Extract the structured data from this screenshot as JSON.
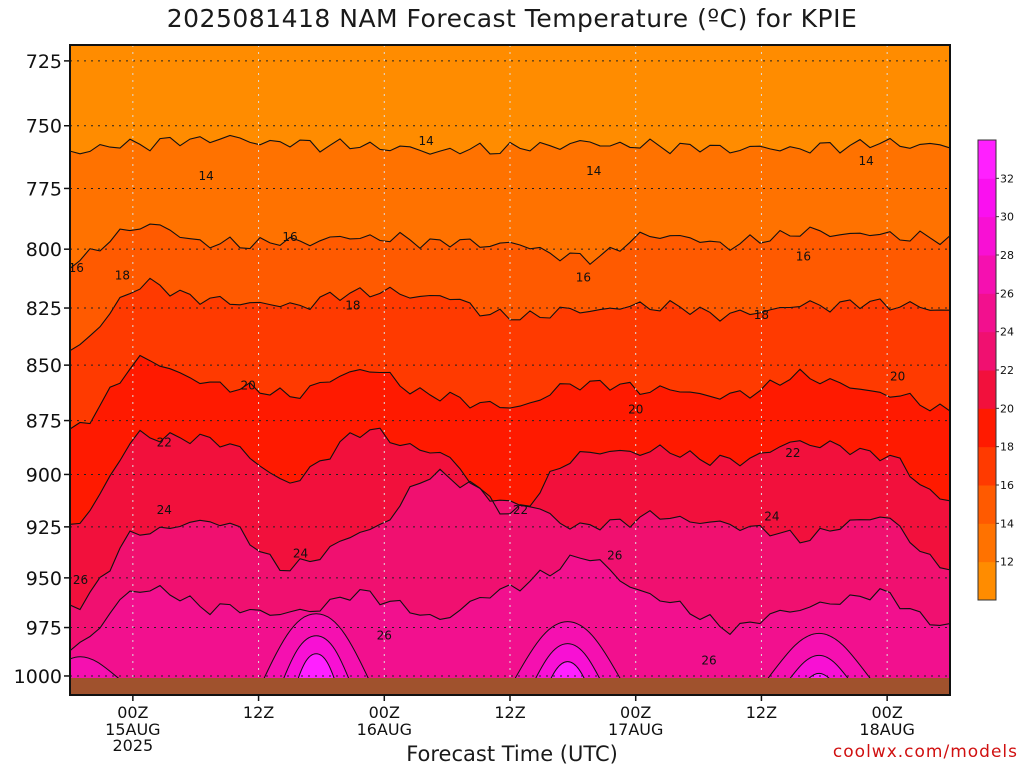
{
  "chart_data": {
    "type": "heatmap",
    "title": "2025081418 NAM Forecast Temperature (ºC) for KPIE",
    "xlabel": "Forecast Time (UTC)",
    "ylabel": "",
    "y_ticks": [
      725,
      750,
      775,
      800,
      825,
      850,
      875,
      900,
      925,
      950,
      975,
      1000
    ],
    "ylim": [
      1010,
      719
    ],
    "y_scale": "log",
    "x_ticks": [
      {
        "hour": 6,
        "label": "00Z",
        "sub": [
          "15AUG",
          "2025"
        ]
      },
      {
        "hour": 18,
        "label": "12Z",
        "sub": []
      },
      {
        "hour": 30,
        "label": "00Z",
        "sub": [
          "16AUG"
        ]
      },
      {
        "hour": 42,
        "label": "12Z",
        "sub": []
      },
      {
        "hour": 54,
        "label": "00Z",
        "sub": [
          "17AUG"
        ]
      },
      {
        "hour": 66,
        "label": "12Z",
        "sub": []
      },
      {
        "hour": 78,
        "label": "00Z",
        "sub": [
          "18AUG"
        ]
      }
    ],
    "xlim": [
      0,
      84
    ],
    "grid": true,
    "colorbar": {
      "levels": [
        12,
        14,
        16,
        18,
        20,
        22,
        24,
        26,
        28,
        30,
        32
      ],
      "labels": [
        "12",
        "14",
        "16",
        "18",
        "20",
        "22",
        "24",
        "26",
        "28",
        "30",
        "32"
      ],
      "colors": [
        "#ff8c00",
        "#ff7200",
        "#ff5a00",
        "#ff3a00",
        "#ff1a00",
        "#f2103c",
        "#f01070",
        "#f2108e",
        "#f510b0",
        "#f810d4",
        "#fa10f0",
        "#ff20ff"
      ]
    },
    "contours": [
      {
        "label": "14",
        "p": [
          760,
          757,
          755,
          757,
          758,
          760,
          759,
          757,
          758,
          759,
          759,
          757,
          758
        ]
      },
      {
        "label": "16",
        "p": [
          805,
          790,
          798,
          797,
          795,
          797,
          798,
          804,
          794,
          798,
          793,
          794,
          796
        ]
      },
      {
        "label": "18",
        "p": [
          843,
          815,
          822,
          824,
          818,
          820,
          829,
          826,
          824,
          828,
          824,
          823,
          826
        ]
      },
      {
        "label": "20",
        "p": [
          880,
          848,
          859,
          863,
          852,
          864,
          869,
          858,
          861,
          864,
          855,
          862,
          870
        ]
      },
      {
        "label": "22",
        "p": [
          925,
          882,
          884,
          903,
          880,
          890,
          918,
          890,
          889,
          894,
          885,
          890,
          912
        ]
      },
      {
        "label": "24",
        "p": [
          965,
          927,
          922,
          945,
          928,
          900,
          913,
          925,
          920,
          924,
          930,
          920,
          945
        ]
      },
      {
        "label": "26",
        "p": [
          985,
          955,
          965,
          968,
          958,
          970,
          955,
          940,
          960,
          975,
          965,
          958,
          975
        ]
      }
    ],
    "labels_on_plot": [
      {
        "text": "14",
        "hour": 13,
        "p": 770
      },
      {
        "text": "14",
        "hour": 34,
        "p": 756
      },
      {
        "text": "14",
        "hour": 50,
        "p": 768
      },
      {
        "text": "14",
        "hour": 76,
        "p": 764
      },
      {
        "text": "16",
        "hour": 0.6,
        "p": 808
      },
      {
        "text": "16",
        "hour": 21,
        "p": 795
      },
      {
        "text": "16",
        "hour": 49,
        "p": 812
      },
      {
        "text": "16",
        "hour": 70,
        "p": 803
      },
      {
        "text": "18",
        "hour": 5,
        "p": 811
      },
      {
        "text": "18",
        "hour": 27,
        "p": 824
      },
      {
        "text": "18",
        "hour": 66,
        "p": 828
      },
      {
        "text": "20",
        "hour": 17,
        "p": 859
      },
      {
        "text": "20",
        "hour": 54,
        "p": 870
      },
      {
        "text": "20",
        "hour": 79,
        "p": 855
      },
      {
        "text": "22",
        "hour": 9,
        "p": 885
      },
      {
        "text": "22",
        "hour": 43,
        "p": 917
      },
      {
        "text": "22",
        "hour": 69,
        "p": 890
      },
      {
        "text": "24",
        "hour": 9,
        "p": 917
      },
      {
        "text": "24",
        "hour": 22,
        "p": 938
      },
      {
        "text": "24",
        "hour": 67,
        "p": 920
      },
      {
        "text": "26",
        "hour": 1,
        "p": 951
      },
      {
        "text": "26",
        "hour": 30,
        "p": 979
      },
      {
        "text": "26",
        "hour": 52,
        "p": 939
      },
      {
        "text": "26",
        "hour": 61,
        "p": 992
      }
    ],
    "warm_peaks": [
      {
        "hour": 23.5,
        "level": 28,
        "p_top": 968
      },
      {
        "hour": 47.5,
        "level": 28,
        "p_top": 972
      },
      {
        "hour": 71.5,
        "level": 28,
        "p_top": 978
      },
      {
        "hour": 1,
        "level": 28,
        "p_top": 990
      }
    ]
  },
  "credit": "coolwx.com/models"
}
